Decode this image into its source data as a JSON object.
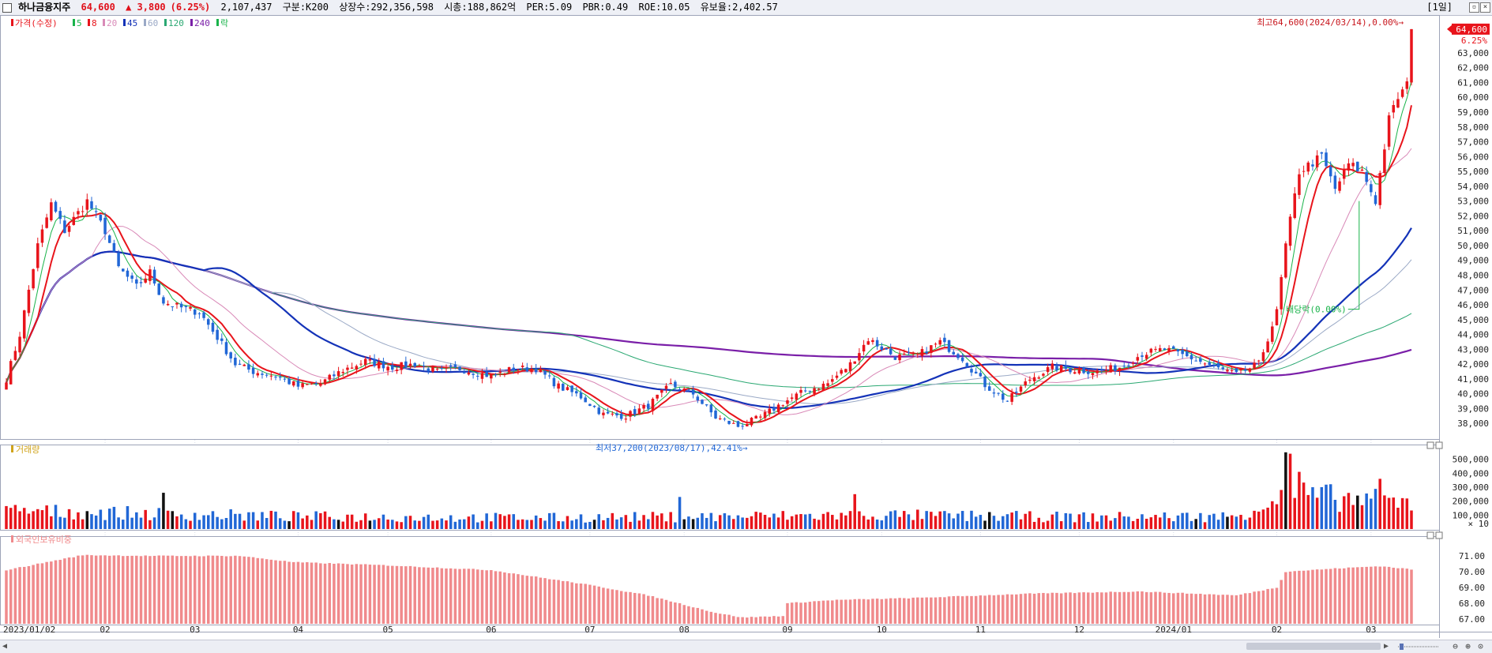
{
  "header": {
    "name": "하나금융지주",
    "price": "64,600",
    "change": "▲ 3,800",
    "change_pct": "(6.25%)",
    "volume": "2,107,437",
    "category": "구분:K200",
    "shares": "상장수:292,356,598",
    "market_cap": "시총:188,862억",
    "per": "PER:5.09",
    "pbr": "PBR:0.49",
    "roe": "ROE:10.05",
    "float": "유보율:2,402.57",
    "period": "[1일]"
  },
  "colors": {
    "up": "#e8141b",
    "down": "#2167d6",
    "flat": "#111111",
    "ma5": "#19b34a",
    "ma8": "#e8141b",
    "ma20": "#d98ab8",
    "ma45": "#1433b8",
    "ma60": "#9aa9c6",
    "ma120": "#2aa872",
    "ma240": "#7a1fa8",
    "foreign": "#f08a8c",
    "grid": "#d8dce8"
  },
  "chart_data": [
    {
      "type": "candlestick",
      "title": "가격(수정)",
      "legend": [
        {
          "label": "가격(수정)",
          "color": "#e8141b"
        },
        {
          "label": "5",
          "color": "#19b34a"
        },
        {
          "label": "8",
          "color": "#e8141b"
        },
        {
          "label": "20",
          "color": "#d98ab8"
        },
        {
          "label": "45",
          "color": "#1433b8"
        },
        {
          "label": "60",
          "color": "#9aa9c6"
        },
        {
          "label": "120",
          "color": "#2aa872"
        },
        {
          "label": "240",
          "color": "#7a1fa8"
        },
        {
          "label": "락",
          "color": "#19b34a"
        }
      ],
      "ylim": [
        37000,
        65500
      ],
      "y_ticks": [
        38000,
        39000,
        40000,
        41000,
        42000,
        43000,
        44000,
        45000,
        46000,
        47000,
        48000,
        49000,
        50000,
        51000,
        52000,
        53000,
        54000,
        55000,
        56000,
        57000,
        58000,
        59000,
        60000,
        61000,
        62000,
        63000
      ],
      "y_tick_labels": [
        "38,000",
        "39,000",
        "40,000",
        "41,000",
        "42,000",
        "43,000",
        "44,000",
        "45,000",
        "46,000",
        "47,000",
        "48,000",
        "49,000",
        "50,000",
        "51,000",
        "52,000",
        "53,000",
        "54,000",
        "55,000",
        "56,000",
        "57,000",
        "58,000",
        "59,000",
        "60,000",
        "61,000",
        "62,000",
        "63,000"
      ],
      "current_price_label": "64,600",
      "current_pct_label": "6.25%",
      "x_labels": [
        "2023/01/02",
        "02",
        "03",
        "04",
        "05",
        "06",
        "07",
        "08",
        "09",
        "10",
        "11",
        "12",
        "2024/01",
        "02",
        "03"
      ],
      "close_path": [
        [
          "2023-01-02",
          41000
        ],
        [
          "2023-01-05",
          44000
        ],
        [
          "2023-01-11",
          50000
        ],
        [
          "2023-01-16",
          52800
        ],
        [
          "2023-01-19",
          51000
        ],
        [
          "2023-01-26",
          53000
        ],
        [
          "2023-02-01",
          51000
        ],
        [
          "2023-02-06",
          48500
        ],
        [
          "2023-02-10",
          47200
        ],
        [
          "2023-02-15",
          48200
        ],
        [
          "2023-02-20",
          46200
        ],
        [
          "2023-02-24",
          45800
        ],
        [
          "2023-03-02",
          45500
        ],
        [
          "2023-03-08",
          43800
        ],
        [
          "2023-03-14",
          42000
        ],
        [
          "2023-03-20",
          41500
        ],
        [
          "2023-03-27",
          41200
        ],
        [
          "2023-04-03",
          40500
        ],
        [
          "2023-04-10",
          40700
        ],
        [
          "2023-04-17",
          41600
        ],
        [
          "2023-04-24",
          42200
        ],
        [
          "2023-05-02",
          41800
        ],
        [
          "2023-05-09",
          42000
        ],
        [
          "2023-05-16",
          41500
        ],
        [
          "2023-05-23",
          41700
        ],
        [
          "2023-06-01",
          41200
        ],
        [
          "2023-06-08",
          41700
        ],
        [
          "2023-06-15",
          41700
        ],
        [
          "2023-06-22",
          40500
        ],
        [
          "2023-06-29",
          39800
        ],
        [
          "2023-07-06",
          38600
        ],
        [
          "2023-07-13",
          38500
        ],
        [
          "2023-07-20",
          39200
        ],
        [
          "2023-07-27",
          40600
        ],
        [
          "2023-08-03",
          40000
        ],
        [
          "2023-08-10",
          38400
        ],
        [
          "2023-08-17",
          37800
        ],
        [
          "2023-08-24",
          38400
        ],
        [
          "2023-08-31",
          39400
        ],
        [
          "2023-09-07",
          40200
        ],
        [
          "2023-09-14",
          40700
        ],
        [
          "2023-09-21",
          42000
        ],
        [
          "2023-09-27",
          43700
        ],
        [
          "2023-10-05",
          42500
        ],
        [
          "2023-10-12",
          42600
        ],
        [
          "2023-10-19",
          43500
        ],
        [
          "2023-10-26",
          42400
        ],
        [
          "2023-11-02",
          40600
        ],
        [
          "2023-11-09",
          39500
        ],
        [
          "2023-11-16",
          41000
        ],
        [
          "2023-11-23",
          41800
        ],
        [
          "2023-11-30",
          41600
        ],
        [
          "2023-12-07",
          41500
        ],
        [
          "2023-12-14",
          41800
        ],
        [
          "2023-12-21",
          42700
        ],
        [
          "2023-12-28",
          43000
        ],
        [
          "2024-01-05",
          42400
        ],
        [
          "2024-01-12",
          41800
        ],
        [
          "2024-01-19",
          41300
        ],
        [
          "2024-01-26",
          42000
        ],
        [
          "2024-02-01",
          45500
        ],
        [
          "2024-02-05",
          50000
        ],
        [
          "2024-02-08",
          55000
        ],
        [
          "2024-02-15",
          56000
        ],
        [
          "2024-02-20",
          53800
        ],
        [
          "2024-02-23",
          55500
        ],
        [
          "2024-02-28",
          55000
        ],
        [
          "2024-03-04",
          53000
        ],
        [
          "2024-03-07",
          58500
        ],
        [
          "2024-03-11",
          60000
        ],
        [
          "2024-03-13",
          60800
        ],
        [
          "2024-03-14",
          64600
        ]
      ],
      "annotations": [
        {
          "text": "최고64,600(2024/03/14),0.00%→",
          "date": "2024-03-14",
          "value": 64600,
          "color": "#c8161d"
        },
        {
          "text": "최저37,200(2023/08/17),42.41%→",
          "date": "2023-08-17",
          "value": 37200,
          "color": "#2167d6"
        },
        {
          "text": "배당락(0.00%)",
          "date": "2024-02-27",
          "value": 45700,
          "color": "#19b34a"
        }
      ]
    },
    {
      "type": "bar",
      "title": "거래량",
      "ylim": [
        0,
        600000
      ],
      "y_ticks": [
        100000,
        200000,
        300000,
        400000,
        500000
      ],
      "y_tick_labels": [
        "100,000",
        "200,000",
        "300,000",
        "400,000",
        "500,000"
      ],
      "unit_label": "× 10",
      "level_path": [
        [
          "2023-01-02",
          130000
        ],
        [
          "2023-02-15",
          110000
        ],
        [
          "2023-04-01",
          90000
        ],
        [
          "2023-06-15",
          80000
        ],
        [
          "2023-08-15",
          90000
        ],
        [
          "2023-10-01",
          100000
        ],
        [
          "2023-12-01",
          85000
        ],
        [
          "2024-01-20",
          90000
        ],
        [
          "2024-02-05",
          250000
        ],
        [
          "2024-03-14",
          180000
        ]
      ],
      "spikes": [
        [
          "2024-02-05",
          550000
        ],
        [
          "2024-02-06",
          540000
        ],
        [
          "2024-02-08",
          410000
        ],
        [
          "2024-03-05",
          360000
        ],
        [
          "2023-09-22",
          250000
        ],
        [
          "2023-07-31",
          230000
        ],
        [
          "2023-02-20",
          260000
        ]
      ]
    },
    {
      "type": "bar",
      "title": "외국인보유비중",
      "ylim": [
        66.7,
        72.2
      ],
      "y_ticks": [
        67,
        68,
        69,
        70,
        71
      ],
      "y_tick_labels": [
        "67.00",
        "68.00",
        "69.00",
        "70.00",
        "71.00"
      ],
      "level_path": [
        [
          "2023-01-02",
          70.1
        ],
        [
          "2023-01-15",
          70.6
        ],
        [
          "2023-01-25",
          71.05
        ],
        [
          "2023-02-15",
          71.0
        ],
        [
          "2023-03-15",
          71.0
        ],
        [
          "2023-04-01",
          70.6
        ],
        [
          "2023-05-01",
          70.4
        ],
        [
          "2023-06-01",
          70.1
        ],
        [
          "2023-06-30",
          69.2
        ],
        [
          "2023-07-20",
          68.5
        ],
        [
          "2023-08-10",
          67.4
        ],
        [
          "2023-08-20",
          67.1
        ],
        [
          "2023-08-31",
          67.2
        ],
        [
          "2023-09-01",
          68.0
        ],
        [
          "2023-09-15",
          68.2
        ],
        [
          "2023-10-15",
          68.35
        ],
        [
          "2023-11-15",
          68.6
        ],
        [
          "2023-12-20",
          68.75
        ],
        [
          "2024-01-20",
          68.5
        ],
        [
          "2024-02-01",
          69.0
        ],
        [
          "2024-02-05",
          70.0
        ],
        [
          "2024-02-20",
          70.2
        ],
        [
          "2024-03-05",
          70.35
        ],
        [
          "2024-03-14",
          70.15
        ]
      ]
    }
  ]
}
